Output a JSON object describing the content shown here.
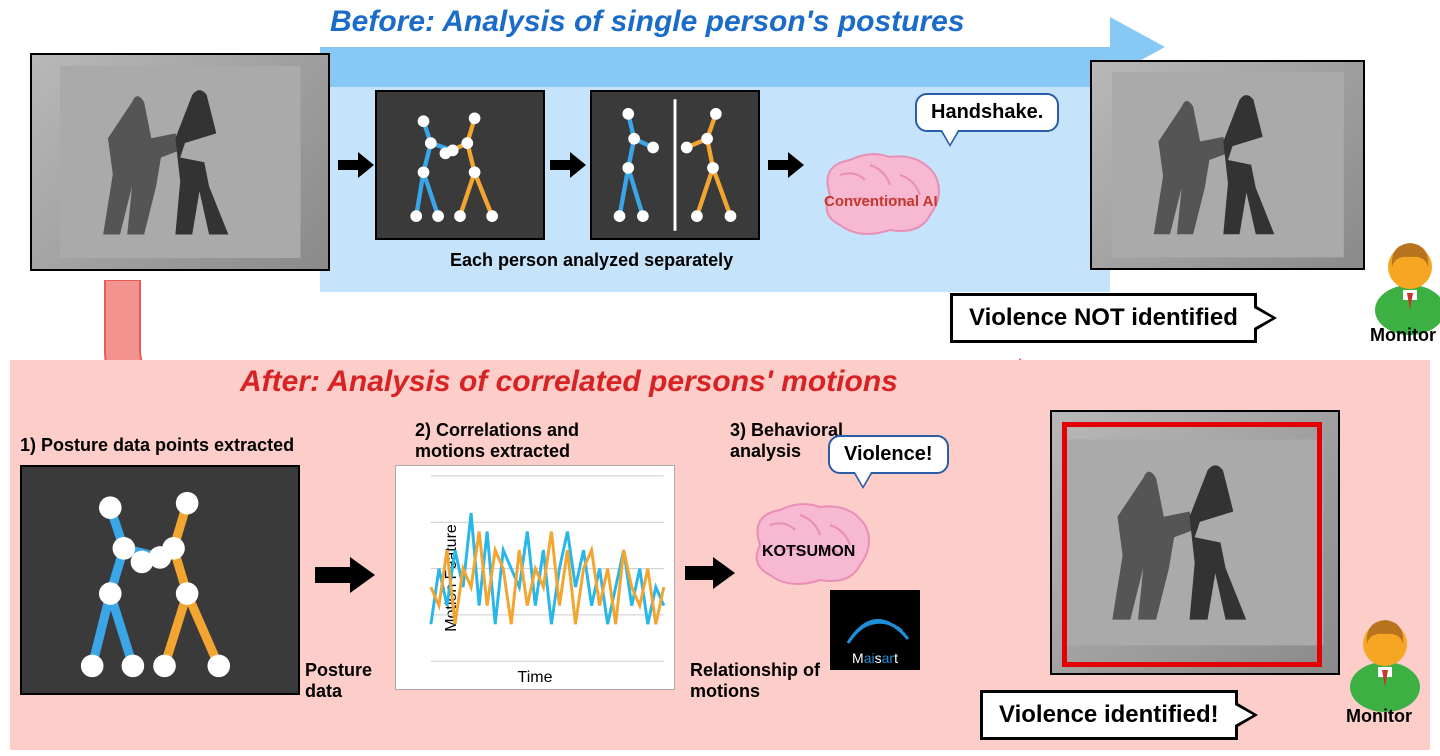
{
  "before": {
    "title": "Before: Analysis of single person's postures",
    "title_color": "#1a6cc8",
    "arrow_color": "#87c9f5",
    "arrow_bg": "#c5e4fb",
    "caption_separate": "Each person analyzed separately",
    "brain_label": "Conventional AI",
    "brain_color": "#f7b8d2",
    "speech": "Handshake.",
    "result": "Violence NOT identified",
    "monitor_label": "Monitor"
  },
  "after": {
    "title": "After: Analysis of correlated persons' motions",
    "title_color": "#d72323",
    "bg_color": "#fccdc9",
    "step1": "1) Posture data points extracted",
    "step2": "2) Correlations and motions extracted",
    "step3": "3) Behavioral analysis",
    "posture_label": "Posture data",
    "relationship_label": "Relationship of motions",
    "chart_xlabel": "Time",
    "chart_ylabel": "Motion Feature",
    "brain_label": "KOTSUMON",
    "brain_color": "#f7b8d2",
    "speech": "Violence!",
    "result": "Violence identified!",
    "monitor_label": "Monitor",
    "maisart": "Maisart"
  },
  "skeleton_colors": {
    "person1": "#3aa6e8",
    "person2": "#f2a531",
    "joint": "#ffffff",
    "bg": "#3a3a3a"
  },
  "chart": {
    "x_range": [
      0,
      30
    ],
    "y_range": [
      0,
      10
    ],
    "series": [
      {
        "color": "#29b6e8",
        "width": 3,
        "points": [
          2,
          5,
          3,
          6,
          4,
          8,
          3,
          7,
          2,
          6,
          5,
          4,
          7,
          3,
          6,
          2,
          5,
          7,
          4,
          6,
          3,
          5,
          2,
          4,
          6,
          3,
          5,
          2,
          4,
          3
        ]
      },
      {
        "color": "#f2a531",
        "width": 3,
        "points": [
          4,
          3,
          6,
          2,
          5,
          4,
          7,
          3,
          6,
          5,
          2,
          6,
          3,
          5,
          4,
          7,
          3,
          6,
          2,
          5,
          6,
          3,
          5,
          2,
          6,
          4,
          3,
          5,
          2,
          4
        ]
      }
    ],
    "grid_color": "#cccccc"
  },
  "monitor_icon": {
    "body_color": "#3cb043",
    "head_color": "#f5a623",
    "tie_color": "#c0392b",
    "shirt_color": "#ffffff"
  },
  "maisart_arc_color": "#1e90d8"
}
